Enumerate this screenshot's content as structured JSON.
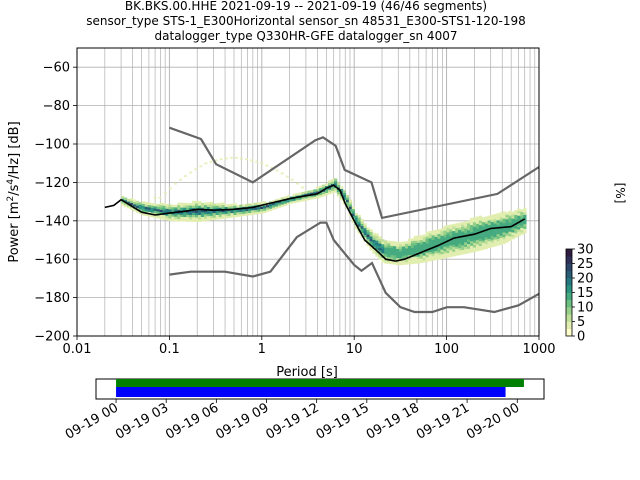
{
  "chart_data": [
    {
      "type": "heatmap",
      "title_lines": [
        "BK.BKS.00.HHE   2021-09-19 -- 2021-09-19  (46/46 segments)",
        "sensor_type STS-1_E300Horizontal sensor_sn 48531_E300-STS1-120-198",
        "datalogger_type Q330HR-GFE datalogger_sn 4007"
      ],
      "xlabel": "Period [s]",
      "ylabel_parts": [
        "Power [m",
        "2",
        "/s",
        "4",
        "/Hz] [dB]"
      ],
      "xscale": "log",
      "xlim": [
        0.01,
        1000
      ],
      "ylim": [
        -200,
        -50
      ],
      "xtick_labels": [
        "0.01",
        "0.1",
        "1",
        "10",
        "100",
        "1000"
      ],
      "ytick_labels": [
        "−60",
        "−80",
        "−100",
        "−120",
        "−140",
        "−160",
        "−180",
        "−200"
      ],
      "yticks": [
        -60,
        -80,
        -100,
        -120,
        -140,
        -160,
        -180,
        -200
      ],
      "grid": true,
      "noise_model_high": {
        "period": [
          0.1,
          0.22,
          0.32,
          0.8,
          3.8,
          4.6,
          6.3,
          7.9,
          15.4,
          20,
          354.8,
          1000
        ],
        "db": [
          -91.5,
          -97.4,
          -110.5,
          -120,
          -98,
          -96.5,
          -101,
          -113.5,
          -120,
          -138.5,
          -126,
          -112
        ]
      },
      "noise_model_low": {
        "period": [
          0.1,
          0.17,
          0.4,
          0.8,
          1.24,
          2.4,
          4.3,
          5,
          6,
          10,
          12,
          15.6,
          21.9,
          31.6,
          45,
          70,
          101,
          154,
          328,
          600,
          1000
        ],
        "db": [
          -168,
          -166.5,
          -166.5,
          -169,
          -166.5,
          -148.5,
          -141,
          -141,
          -150,
          -163,
          -166,
          -162,
          -177.5,
          -185,
          -187.5,
          -187.5,
          -185,
          -185,
          -187.5,
          -184,
          -178
        ]
      },
      "mean_line": {
        "period": [
          0.02,
          0.025,
          0.03,
          0.035,
          0.05,
          0.07,
          0.1,
          0.15,
          0.2,
          0.3,
          0.5,
          0.8,
          1.2,
          2,
          3,
          4,
          5,
          6,
          7,
          8,
          10,
          13,
          17,
          22,
          28,
          35,
          50,
          80,
          120,
          200,
          300,
          500,
          700
        ],
        "db": [
          -133,
          -132,
          -129,
          -131,
          -135.5,
          -137,
          -136,
          -135,
          -134,
          -134.5,
          -134,
          -133,
          -131,
          -128.5,
          -127,
          -126,
          -123,
          -121.5,
          -124,
          -131,
          -140,
          -150,
          -155,
          -160,
          -161,
          -160,
          -157,
          -153,
          -149,
          -147,
          -144,
          -143,
          -139
        ]
      },
      "ppsd_upper_band": {
        "period": [
          0.03,
          0.05,
          0.1,
          0.2,
          0.5,
          1,
          2,
          4,
          6,
          8,
          10,
          15,
          20,
          30,
          50,
          100,
          200,
          400,
          700
        ],
        "db": [
          -128,
          -131,
          -132,
          -130.5,
          -132,
          -131,
          -127.5,
          -123,
          -118,
          -126,
          -136,
          -146,
          -150,
          -152,
          -148,
          -143,
          -139,
          -136,
          -134
        ]
      },
      "ppsd_lower_band": {
        "period": [
          0.03,
          0.05,
          0.1,
          0.2,
          0.5,
          1,
          2,
          4,
          6,
          8,
          10,
          15,
          20,
          30,
          50,
          100,
          200,
          400,
          700
        ],
        "db": [
          -132,
          -137,
          -140,
          -140.5,
          -138,
          -136,
          -131,
          -128,
          -125,
          -133,
          -144,
          -156,
          -162,
          -163,
          -162,
          -159,
          -156,
          -152,
          -146
        ]
      },
      "faint_bump": {
        "period": [
          0.08,
          0.12,
          0.18,
          0.25,
          0.35,
          0.5,
          0.7,
          1,
          1.5,
          2.2,
          3
        ],
        "db": [
          -128,
          -120,
          -114,
          -110,
          -108,
          -107,
          -108,
          -110,
          -114,
          -119,
          -124
        ]
      },
      "colorbar": {
        "label": "[%]",
        "range": [
          0,
          30
        ],
        "ticks": [
          0,
          5,
          10,
          15,
          20,
          25,
          30
        ],
        "colors": [
          "#ffffcc",
          "#e2eeb0",
          "#c0e09a",
          "#96d08a",
          "#6bbf80",
          "#45aa7f",
          "#2c9282",
          "#25787f",
          "#285d75",
          "#2c4568",
          "#2f2f58",
          "#301c40"
        ]
      }
    },
    {
      "type": "timeline",
      "tick_labels": [
        "09-19 00",
        "09-19 03",
        "09-19 06",
        "09-19 09",
        "09-19 12",
        "09-19 15",
        "09-19 18",
        "09-19 21",
        "09-20 00"
      ],
      "tick_hours": [
        0,
        3,
        6,
        9,
        12,
        15,
        18,
        21,
        24
      ],
      "xlim_hours": [
        -1.2,
        25.6
      ],
      "green_bar_hours": [
        0,
        24.4
      ],
      "blue_bar_hours": [
        0,
        23.3
      ],
      "green_color": "#008000",
      "blue_color": "#0000ff"
    }
  ]
}
